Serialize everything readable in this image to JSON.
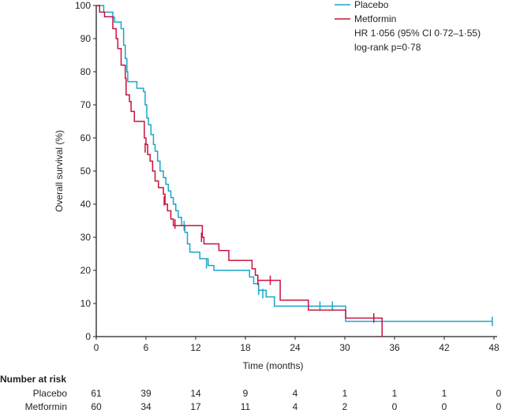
{
  "chart_data": {
    "type": "line",
    "subtype": "kaplan-meier step",
    "xlabel": "Time (months)",
    "ylabel": "Overall survival (%)",
    "xlim": [
      0,
      48
    ],
    "ylim": [
      0,
      100
    ],
    "xticks": [
      0,
      6,
      12,
      18,
      24,
      30,
      36,
      42,
      48
    ],
    "yticks": [
      0,
      10,
      20,
      30,
      40,
      50,
      60,
      70,
      80,
      90,
      100
    ],
    "grid": false,
    "legend_position": "top-right",
    "annotations": [
      "HR 1·056 (95% CI 0·72–1·55)",
      "log-rank p=0·78"
    ],
    "series": [
      {
        "name": "Placebo",
        "color": "#1ba6c9",
        "steps": [
          [
            0,
            100
          ],
          [
            0.9,
            98
          ],
          [
            2,
            96.5
          ],
          [
            2.2,
            95
          ],
          [
            3,
            93
          ],
          [
            3.3,
            88
          ],
          [
            3.5,
            84
          ],
          [
            3.7,
            80
          ],
          [
            3.8,
            77
          ],
          [
            4.7,
            77
          ],
          [
            4.9,
            75
          ],
          [
            5.7,
            74
          ],
          [
            5.9,
            70
          ],
          [
            6.1,
            66
          ],
          [
            6.3,
            64
          ],
          [
            6.6,
            61
          ],
          [
            6.9,
            58
          ],
          [
            7.1,
            56
          ],
          [
            7.4,
            53
          ],
          [
            7.7,
            50
          ],
          [
            8.1,
            48
          ],
          [
            8.4,
            46
          ],
          [
            8.7,
            44
          ],
          [
            9.0,
            42
          ],
          [
            9.3,
            40
          ],
          [
            9.6,
            38
          ],
          [
            9.9,
            36
          ],
          [
            10.3,
            33.5
          ],
          [
            10.7,
            31.5
          ],
          [
            11,
            28
          ],
          [
            11.3,
            25.5
          ],
          [
            12.5,
            23.5
          ],
          [
            13.5,
            21.5
          ],
          [
            14.2,
            20
          ],
          [
            17.8,
            20
          ],
          [
            18.5,
            18
          ],
          [
            19,
            16
          ],
          [
            19.6,
            14
          ],
          [
            20.5,
            12
          ],
          [
            21.5,
            9.2
          ],
          [
            30,
            9.2
          ],
          [
            30.1,
            4.6
          ],
          [
            47.8,
            4.6
          ]
        ],
        "censored": [
          [
            10.6,
            33.5
          ],
          [
            13.3,
            22
          ],
          [
            19.6,
            14
          ],
          [
            20.1,
            13
          ],
          [
            27,
            9.2
          ],
          [
            28.5,
            9.2
          ],
          [
            47.8,
            4.6
          ]
        ]
      },
      {
        "name": "Metformin",
        "color": "#c8123f",
        "steps": [
          [
            0,
            100
          ],
          [
            0.4,
            98
          ],
          [
            1,
            96.6
          ],
          [
            2,
            93
          ],
          [
            2.4,
            90
          ],
          [
            2.6,
            87
          ],
          [
            3,
            82
          ],
          [
            3.5,
            78
          ],
          [
            3.6,
            73
          ],
          [
            4,
            71
          ],
          [
            4.2,
            68
          ],
          [
            4.6,
            65
          ],
          [
            5.6,
            65
          ],
          [
            5.8,
            60
          ],
          [
            6,
            58
          ],
          [
            6.2,
            55
          ],
          [
            6.5,
            53
          ],
          [
            6.8,
            50
          ],
          [
            7.1,
            47
          ],
          [
            7.5,
            45
          ],
          [
            8.1,
            43
          ],
          [
            8.3,
            40
          ],
          [
            8.6,
            38
          ],
          [
            9,
            35.5
          ],
          [
            9.3,
            33.5
          ],
          [
            12.6,
            33.5
          ],
          [
            12.8,
            30
          ],
          [
            13.0,
            28
          ],
          [
            14.5,
            28
          ],
          [
            14.8,
            26
          ],
          [
            16,
            23
          ],
          [
            18.5,
            23
          ],
          [
            18.8,
            20.5
          ],
          [
            19.2,
            18.5
          ],
          [
            19.5,
            17
          ],
          [
            22,
            17
          ],
          [
            22.2,
            11
          ],
          [
            25.5,
            11
          ],
          [
            25.6,
            8
          ],
          [
            30,
            8
          ],
          [
            30.1,
            5.6
          ],
          [
            34.5,
            5.6
          ],
          [
            34.5,
            0
          ]
        ],
        "censored": [
          [
            5.9,
            57
          ],
          [
            8.2,
            41
          ],
          [
            9.5,
            34
          ],
          [
            12.7,
            30
          ],
          [
            19.5,
            17
          ],
          [
            21,
            17
          ],
          [
            33.5,
            5.6
          ]
        ]
      }
    ],
    "risk_table": {
      "title": "Number at risk",
      "times": [
        0,
        6,
        12,
        18,
        24,
        30,
        36,
        42,
        48
      ],
      "rows": [
        {
          "label": "Placebo",
          "values": [
            "61",
            "39",
            "14",
            "9",
            "4",
            "1",
            "1",
            "1",
            "0"
          ]
        },
        {
          "label": "Metformin",
          "values": [
            "60",
            "34",
            "17",
            "11",
            "4",
            "2",
            "0",
            "0",
            "0"
          ]
        }
      ]
    }
  }
}
